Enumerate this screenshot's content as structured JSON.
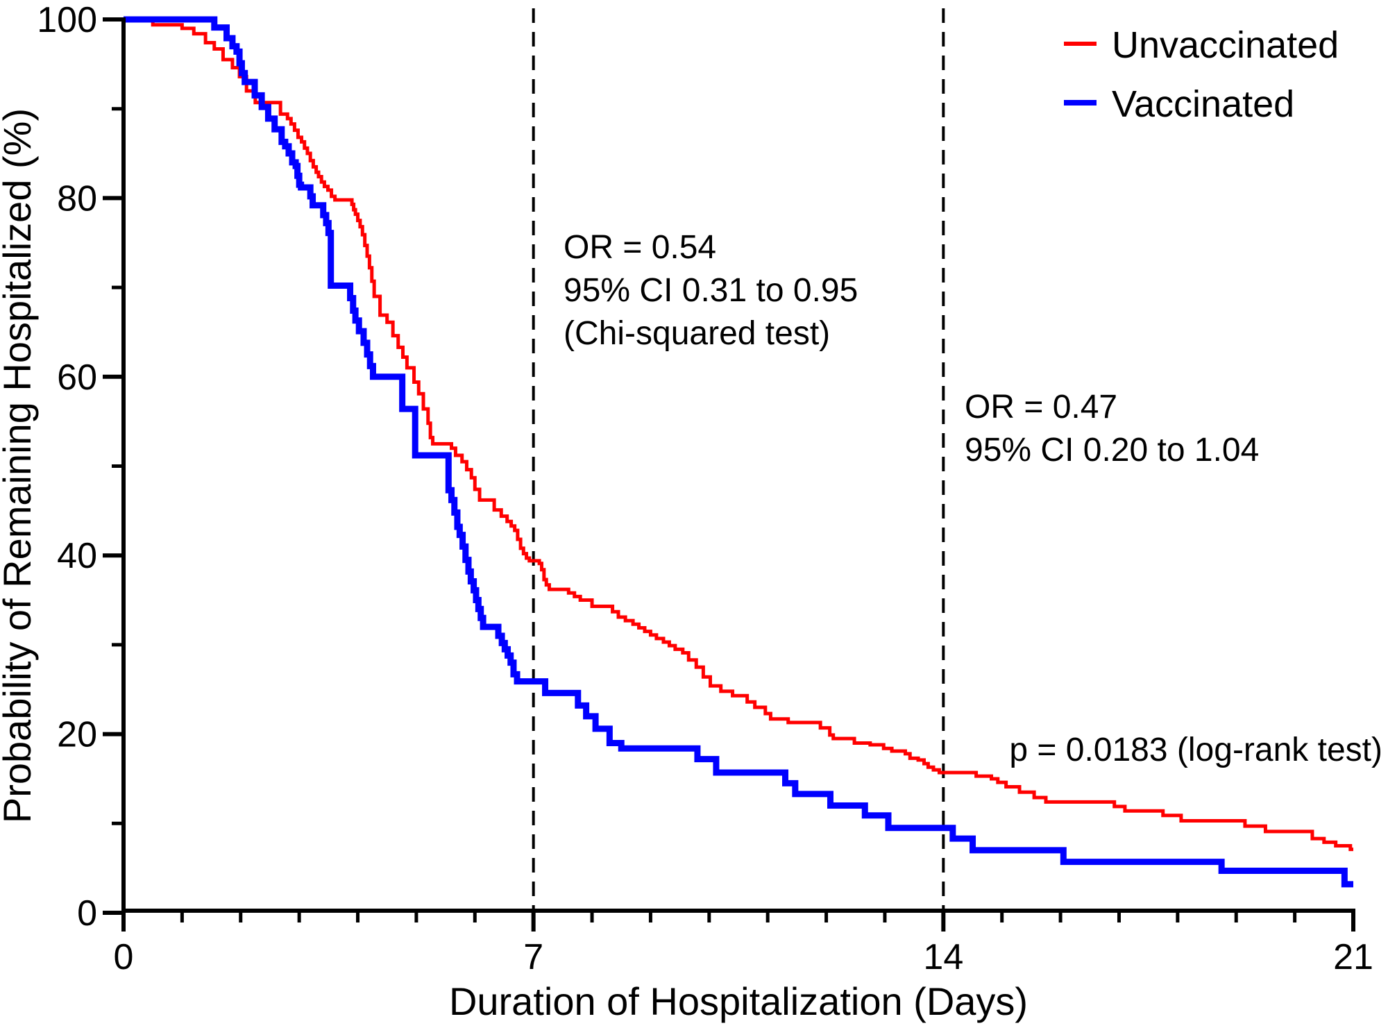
{
  "figure": {
    "background": "#ffffff",
    "axis_color": "#000000",
    "unvaccinated_color": "#ff0000",
    "vaccinated_color": "#0000ff"
  },
  "axes": {
    "x_title": "Duration of Hospitalization (Days)",
    "y_title": "Probability of Remaining Hospitalized (%)"
  },
  "legend": {
    "items": [
      {
        "label": "Unvaccinated",
        "color": "#ff0000",
        "stroke_width": 6
      },
      {
        "label": "Vaccinated",
        "color": "#0000ff",
        "stroke_width": 8
      }
    ]
  },
  "annotations": {
    "or_day7": {
      "line1": "OR = 0.54",
      "line2": "95% CI 0.31 to 0.95",
      "line3": "(Chi-squared test)"
    },
    "or_day14": {
      "line1": "OR = 0.47",
      "line2": "95% CI 0.20 to 1.04"
    },
    "p_value": "p = 0.0183 (log-rank test)"
  },
  "chart_data": {
    "type": "line",
    "subtype": "kaplan-meier-step",
    "title": "",
    "xlabel": "Duration of Hospitalization (Days)",
    "ylabel": "Probability of Remaining Hospitalized (%)",
    "xlim": [
      0,
      21
    ],
    "ylim": [
      0,
      100
    ],
    "grid": false,
    "legend_position": "top-right",
    "x_major_ticks": [
      0,
      7,
      14,
      21
    ],
    "x_major_tick_labels": [
      "0",
      "7",
      "14",
      "21"
    ],
    "x_minor_ticks": [
      1,
      2,
      3,
      4,
      5,
      6,
      8,
      9,
      10,
      11,
      12,
      13,
      15,
      16,
      17,
      18,
      19,
      20
    ],
    "y_major_ticks": [
      0,
      20,
      40,
      60,
      80,
      100
    ],
    "y_major_tick_labels": [
      "0",
      "20",
      "40",
      "60",
      "80",
      "100"
    ],
    "y_minor_ticks": [
      10,
      30,
      50,
      70,
      90
    ],
    "reference_lines_x": [
      7,
      14
    ],
    "series": [
      {
        "name": "Unvaccinated",
        "color": "#ff0000",
        "stroke_width": 5,
        "start": [
          0,
          100
        ],
        "steps": [
          [
            0.5,
            99.4
          ],
          [
            1.0,
            99.0
          ],
          [
            1.2,
            98.4
          ],
          [
            1.4,
            97.4
          ],
          [
            1.55,
            96.7
          ],
          [
            1.7,
            95.5
          ],
          [
            1.86,
            94.6
          ],
          [
            1.98,
            93.6
          ],
          [
            2.1,
            92.0
          ],
          [
            2.25,
            90.7
          ],
          [
            2.68,
            89.4
          ],
          [
            2.8,
            88.9
          ],
          [
            2.86,
            88.3
          ],
          [
            2.92,
            87.6
          ],
          [
            2.98,
            86.8
          ],
          [
            3.04,
            86.3
          ],
          [
            3.09,
            85.6
          ],
          [
            3.14,
            85.0
          ],
          [
            3.19,
            84.2
          ],
          [
            3.24,
            83.5
          ],
          [
            3.29,
            82.9
          ],
          [
            3.33,
            82.4
          ],
          [
            3.38,
            81.8
          ],
          [
            3.43,
            81.3
          ],
          [
            3.49,
            80.9
          ],
          [
            3.55,
            80.2
          ],
          [
            3.61,
            79.8
          ],
          [
            3.9,
            79.3
          ],
          [
            3.93,
            78.7
          ],
          [
            3.96,
            78.2
          ],
          [
            4.0,
            77.5
          ],
          [
            4.04,
            76.8
          ],
          [
            4.08,
            75.9
          ],
          [
            4.12,
            74.7
          ],
          [
            4.16,
            73.5
          ],
          [
            4.2,
            72.2
          ],
          [
            4.24,
            70.7
          ],
          [
            4.28,
            69.0
          ],
          [
            4.38,
            66.9
          ],
          [
            4.5,
            66.1
          ],
          [
            4.6,
            64.6
          ],
          [
            4.69,
            63.3
          ],
          [
            4.77,
            62.2
          ],
          [
            4.84,
            61.0
          ],
          [
            4.96,
            59.4
          ],
          [
            5.04,
            58.1
          ],
          [
            5.12,
            56.4
          ],
          [
            5.2,
            54.8
          ],
          [
            5.24,
            53.2
          ],
          [
            5.28,
            52.5
          ],
          [
            5.6,
            52.0
          ],
          [
            5.67,
            51.2
          ],
          [
            5.78,
            50.5
          ],
          [
            5.86,
            49.6
          ],
          [
            5.94,
            48.7
          ],
          [
            6.0,
            47.4
          ],
          [
            6.08,
            46.2
          ],
          [
            6.33,
            45.1
          ],
          [
            6.45,
            44.4
          ],
          [
            6.55,
            43.8
          ],
          [
            6.62,
            43.3
          ],
          [
            6.68,
            42.8
          ],
          [
            6.73,
            41.8
          ],
          [
            6.78,
            40.8
          ],
          [
            6.83,
            40.2
          ],
          [
            6.88,
            39.7
          ],
          [
            6.93,
            39.4
          ],
          [
            7.1,
            39.1
          ],
          [
            7.14,
            38.4
          ],
          [
            7.18,
            37.3
          ],
          [
            7.22,
            36.7
          ],
          [
            7.27,
            36.2
          ],
          [
            7.6,
            35.8
          ],
          [
            7.7,
            35.4
          ],
          [
            7.8,
            35.0
          ],
          [
            8.0,
            34.3
          ],
          [
            8.35,
            33.7
          ],
          [
            8.45,
            33.1
          ],
          [
            8.57,
            32.7
          ],
          [
            8.7,
            32.3
          ],
          [
            8.8,
            31.9
          ],
          [
            8.9,
            31.5
          ],
          [
            9.0,
            31.1
          ],
          [
            9.1,
            30.7
          ],
          [
            9.22,
            30.3
          ],
          [
            9.32,
            29.9
          ],
          [
            9.42,
            29.5
          ],
          [
            9.55,
            29.1
          ],
          [
            9.65,
            28.3
          ],
          [
            9.78,
            27.5
          ],
          [
            9.9,
            26.4
          ],
          [
            10.02,
            25.4
          ],
          [
            10.2,
            24.8
          ],
          [
            10.4,
            24.3
          ],
          [
            10.65,
            23.6
          ],
          [
            10.78,
            23.0
          ],
          [
            10.96,
            22.3
          ],
          [
            11.05,
            21.7
          ],
          [
            11.35,
            21.3
          ],
          [
            11.9,
            20.7
          ],
          [
            12.06,
            19.9
          ],
          [
            12.12,
            19.5
          ],
          [
            12.48,
            19.0
          ],
          [
            12.75,
            18.8
          ],
          [
            12.98,
            18.4
          ],
          [
            13.12,
            18.1
          ],
          [
            13.35,
            17.8
          ],
          [
            13.43,
            17.3
          ],
          [
            13.57,
            17.1
          ],
          [
            13.67,
            16.7
          ],
          [
            13.74,
            16.3
          ],
          [
            13.83,
            16.0
          ],
          [
            13.93,
            15.7
          ],
          [
            14.56,
            15.3
          ],
          [
            14.82,
            15.0
          ],
          [
            14.93,
            14.6
          ],
          [
            15.07,
            14.1
          ],
          [
            15.3,
            13.5
          ],
          [
            15.55,
            12.9
          ],
          [
            15.75,
            12.4
          ],
          [
            16.92,
            11.9
          ],
          [
            17.1,
            11.4
          ],
          [
            17.75,
            10.9
          ],
          [
            18.06,
            10.3
          ],
          [
            19.15,
            9.7
          ],
          [
            19.5,
            9.1
          ],
          [
            20.3,
            8.3
          ],
          [
            20.5,
            7.9
          ],
          [
            20.7,
            7.5
          ],
          [
            20.95,
            7.1
          ]
        ]
      },
      {
        "name": "Vaccinated",
        "color": "#0000ff",
        "stroke_width": 9,
        "start": [
          0,
          100
        ],
        "steps": [
          [
            1.55,
            99.1
          ],
          [
            1.76,
            97.9
          ],
          [
            1.86,
            97.0
          ],
          [
            1.93,
            96.4
          ],
          [
            1.98,
            95.1
          ],
          [
            2.02,
            94.0
          ],
          [
            2.07,
            93.0
          ],
          [
            2.24,
            91.5
          ],
          [
            2.36,
            90.2
          ],
          [
            2.47,
            88.9
          ],
          [
            2.58,
            87.7
          ],
          [
            2.7,
            86.3
          ],
          [
            2.76,
            85.8
          ],
          [
            2.82,
            85.0
          ],
          [
            2.88,
            84.0
          ],
          [
            2.94,
            83.6
          ],
          [
            2.97,
            82.5
          ],
          [
            3.0,
            81.5
          ],
          [
            3.03,
            81.2
          ],
          [
            3.19,
            80.2
          ],
          [
            3.23,
            79.2
          ],
          [
            3.41,
            78.1
          ],
          [
            3.46,
            77.2
          ],
          [
            3.5,
            76.1
          ],
          [
            3.54,
            70.2
          ],
          [
            3.87,
            68.8
          ],
          [
            3.92,
            67.4
          ],
          [
            3.96,
            66.3
          ],
          [
            4.02,
            65.1
          ],
          [
            4.1,
            63.8
          ],
          [
            4.16,
            62.5
          ],
          [
            4.21,
            61.2
          ],
          [
            4.26,
            60.0
          ],
          [
            4.76,
            56.4
          ],
          [
            4.98,
            51.2
          ],
          [
            5.55,
            47.3
          ],
          [
            5.6,
            46.2
          ],
          [
            5.65,
            44.8
          ],
          [
            5.7,
            43.2
          ],
          [
            5.74,
            42.3
          ],
          [
            5.79,
            41.0
          ],
          [
            5.84,
            39.5
          ],
          [
            5.89,
            38.2
          ],
          [
            5.93,
            37.1
          ],
          [
            5.98,
            36.1
          ],
          [
            6.02,
            35.0
          ],
          [
            6.06,
            34.0
          ],
          [
            6.1,
            33.0
          ],
          [
            6.14,
            32.0
          ],
          [
            6.4,
            31.0
          ],
          [
            6.46,
            30.2
          ],
          [
            6.51,
            29.5
          ],
          [
            6.56,
            28.8
          ],
          [
            6.61,
            28.0
          ],
          [
            6.66,
            26.7
          ],
          [
            6.72,
            25.9
          ],
          [
            7.2,
            24.6
          ],
          [
            7.76,
            23.2
          ],
          [
            7.9,
            22.0
          ],
          [
            8.06,
            20.6
          ],
          [
            8.3,
            19.0
          ],
          [
            8.5,
            18.4
          ],
          [
            9.8,
            17.2
          ],
          [
            10.12,
            15.7
          ],
          [
            11.3,
            14.5
          ],
          [
            11.47,
            13.3
          ],
          [
            12.07,
            12.0
          ],
          [
            12.66,
            10.9
          ],
          [
            13.06,
            9.5
          ],
          [
            14.16,
            8.3
          ],
          [
            14.5,
            7.0
          ],
          [
            16.05,
            5.7
          ],
          [
            18.75,
            4.7
          ],
          [
            20.85,
            3.2
          ]
        ]
      }
    ],
    "annotations": [
      {
        "text": "OR = 0.54",
        "x_day": 7.5,
        "y_pct": 74
      },
      {
        "text": "95% CI 0.31 to 0.95",
        "x_day": 7.5,
        "y_pct": 69
      },
      {
        "text": "(Chi-squared test)",
        "x_day": 7.5,
        "y_pct": 64
      },
      {
        "text": "OR = 0.47",
        "x_day": 14.4,
        "y_pct": 56
      },
      {
        "text": "95% CI 0.20 to 1.04",
        "x_day": 14.4,
        "y_pct": 51
      },
      {
        "text": "p = 0.0183 (log-rank test)",
        "x_day": 21,
        "y_pct": 17.5
      }
    ]
  }
}
